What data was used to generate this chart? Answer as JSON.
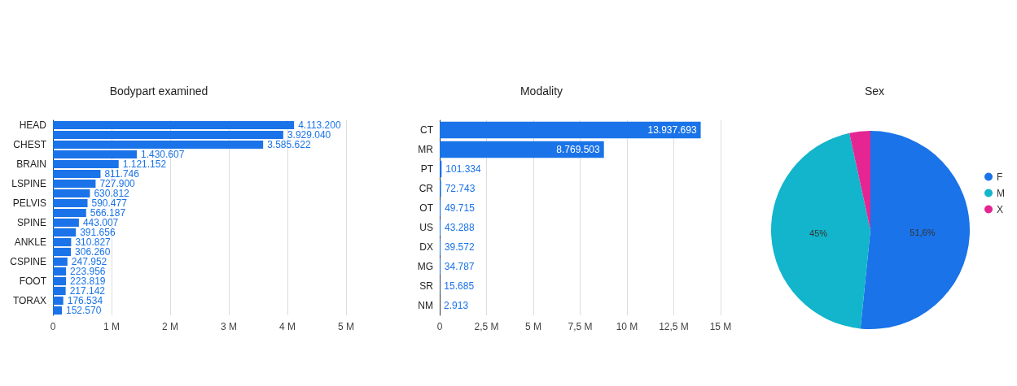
{
  "chart_data": [
    {
      "type": "bar",
      "orientation": "horizontal",
      "title": "Bodypart examined",
      "categories": [
        "HEAD",
        null,
        "CHEST",
        null,
        "BRAIN",
        null,
        "LSPINE",
        null,
        "PELVIS",
        null,
        "SPINE",
        null,
        "ANKLE",
        null,
        "CSPINE",
        null,
        "FOOT",
        null,
        "TORAX",
        null
      ],
      "values": [
        4113200,
        3929040,
        3585622,
        1430607,
        1121152,
        811746,
        727900,
        630812,
        590477,
        566187,
        443007,
        391656,
        310827,
        306260,
        247952,
        223956,
        223819,
        217142,
        176534,
        152570
      ],
      "value_labels": [
        "4.113.200",
        "3.929.040",
        "3.585.622",
        "1.430.607",
        "1.121.152",
        "811.746",
        "727.900",
        "630.812",
        "590.477",
        "566.187",
        "443.007",
        "391.656",
        "310.827",
        "306.260",
        "247.952",
        "223.956",
        "223.819",
        "217.142",
        "176.534",
        "152.570"
      ],
      "color": "#1a73e8",
      "xlim": [
        0,
        5000000
      ],
      "xticks": [
        0,
        {
          "value": 1000000,
          "label": "1 M"
        },
        {
          "value": 2000000,
          "label": "2 M"
        },
        {
          "value": 3000000,
          "label": "3 M"
        },
        {
          "value": 4000000,
          "label": "4 M"
        },
        {
          "value": 5000000,
          "label": "5 M"
        }
      ],
      "grid": "x"
    },
    {
      "type": "bar",
      "orientation": "horizontal",
      "title": "Modality",
      "categories": [
        "CT",
        "MR",
        "PT",
        "CR",
        "OT",
        "US",
        "DX",
        "MG",
        "SR",
        "NM"
      ],
      "values": [
        13937693,
        8769503,
        101334,
        72743,
        49715,
        43288,
        39572,
        34787,
        15685,
        2913
      ],
      "value_labels": [
        "13.937.693",
        "8.769.503",
        "101.334",
        "72.743",
        "49.715",
        "43.288",
        "39.572",
        "34.787",
        "15.685",
        "2.913"
      ],
      "color": "#1a73e8",
      "xlim": [
        0,
        15000000
      ],
      "xticks": [
        0,
        {
          "value": 2500000,
          "label": "2,5 M"
        },
        {
          "value": 5000000,
          "label": "5 M"
        },
        {
          "value": 7500000,
          "label": "7,5 M"
        },
        {
          "value": 10000000,
          "label": "10 M"
        },
        {
          "value": 12500000,
          "label": "12,5 M"
        },
        {
          "value": 15000000,
          "label": "15 M"
        }
      ],
      "grid": "x"
    },
    {
      "type": "pie",
      "title": "Sex",
      "categories": [
        "F",
        "M",
        "X"
      ],
      "values": [
        51.6,
        45,
        3.4
      ],
      "colors": [
        "#1a73e8",
        "#12b5cb",
        "#e52592"
      ],
      "value_labels": [
        "51,6%",
        "45%",
        null
      ],
      "legend": "right"
    }
  ]
}
